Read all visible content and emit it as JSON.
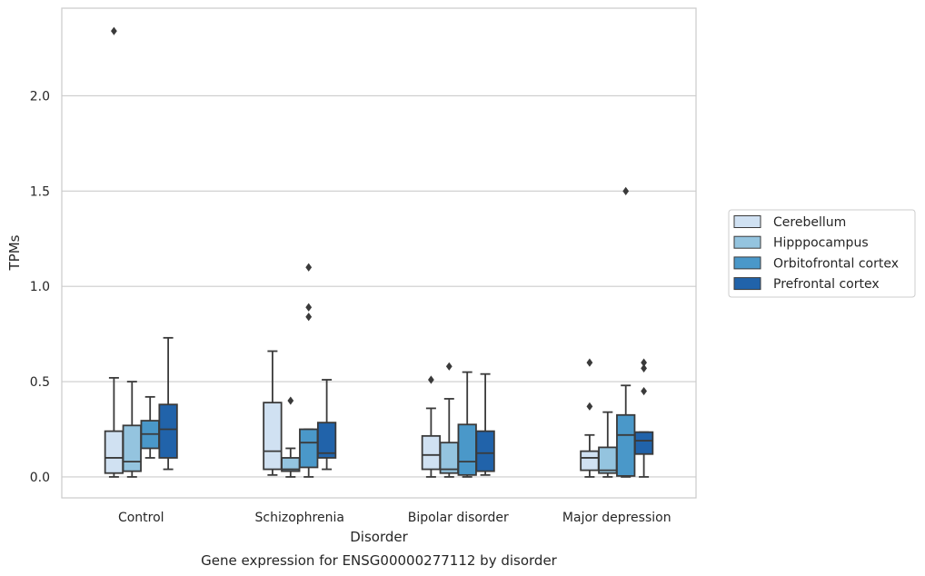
{
  "chart_data": {
    "type": "box",
    "title": "",
    "caption": "Gene expression for ENSG00000277112 by disorder",
    "xlabel": "Disorder",
    "ylabel": "TPMs",
    "categories": [
      "Control",
      "Schizophrenia",
      "Bipolar disorder",
      "Major depression"
    ],
    "ylim": [
      -0.11,
      2.46
    ],
    "yticks": [
      0.0,
      0.5,
      1.0,
      1.5,
      2.0
    ],
    "ytick_labels": [
      "0.0",
      "0.5",
      "1.0",
      "1.5",
      "2.0"
    ],
    "grid": "horizontal",
    "legend_position": "right",
    "series": [
      {
        "name": "Cerebellum",
        "color": "#d0e1f2",
        "boxes": [
          {
            "whisker_low": 0.0,
            "q1": 0.02,
            "median": 0.1,
            "q3": 0.24,
            "whisker_high": 0.52,
            "outliers": [
              2.34
            ]
          },
          {
            "whisker_low": 0.01,
            "q1": 0.04,
            "median": 0.135,
            "q3": 0.39,
            "whisker_high": 0.66,
            "outliers": []
          },
          {
            "whisker_low": 0.0,
            "q1": 0.04,
            "median": 0.115,
            "q3": 0.215,
            "whisker_high": 0.36,
            "outliers": [
              0.51
            ]
          },
          {
            "whisker_low": 0.0,
            "q1": 0.035,
            "median": 0.1,
            "q3": 0.135,
            "whisker_high": 0.22,
            "outliers": [
              0.37,
              0.6
            ]
          }
        ]
      },
      {
        "name": "Hipppocampus",
        "color": "#94c4df",
        "boxes": [
          {
            "whisker_low": 0.0,
            "q1": 0.03,
            "median": 0.08,
            "q3": 0.27,
            "whisker_high": 0.5,
            "outliers": []
          },
          {
            "whisker_low": 0.0,
            "q1": 0.03,
            "median": 0.04,
            "q3": 0.1,
            "whisker_high": 0.15,
            "outliers": [
              0.4
            ]
          },
          {
            "whisker_low": 0.0,
            "q1": 0.02,
            "median": 0.04,
            "q3": 0.18,
            "whisker_high": 0.41,
            "outliers": [
              0.58
            ]
          },
          {
            "whisker_low": 0.0,
            "q1": 0.02,
            "median": 0.035,
            "q3": 0.155,
            "whisker_high": 0.34,
            "outliers": []
          }
        ]
      },
      {
        "name": "Orbitofrontal cortex",
        "color": "#4a98c9",
        "boxes": [
          {
            "whisker_low": 0.1,
            "q1": 0.15,
            "median": 0.225,
            "q3": 0.295,
            "whisker_high": 0.42,
            "outliers": []
          },
          {
            "whisker_low": 0.0,
            "q1": 0.05,
            "median": 0.18,
            "q3": 0.25,
            "whisker_high": 0.25,
            "outliers": [
              0.84,
              0.89,
              1.1
            ]
          },
          {
            "whisker_low": 0.0,
            "q1": 0.01,
            "median": 0.08,
            "q3": 0.275,
            "whisker_high": 0.55,
            "outliers": []
          },
          {
            "whisker_low": 0.0,
            "q1": 0.005,
            "median": 0.22,
            "q3": 0.325,
            "whisker_high": 0.48,
            "outliers": [
              1.5
            ]
          }
        ]
      },
      {
        "name": "Prefrontal cortex",
        "color": "#2163aa",
        "boxes": [
          {
            "whisker_low": 0.04,
            "q1": 0.1,
            "median": 0.25,
            "q3": 0.38,
            "whisker_high": 0.73,
            "outliers": []
          },
          {
            "whisker_low": 0.04,
            "q1": 0.1,
            "median": 0.125,
            "q3": 0.285,
            "whisker_high": 0.51,
            "outliers": []
          },
          {
            "whisker_low": 0.01,
            "q1": 0.03,
            "median": 0.125,
            "q3": 0.24,
            "whisker_high": 0.54,
            "outliers": []
          },
          {
            "whisker_low": 0.0,
            "q1": 0.12,
            "median": 0.19,
            "q3": 0.235,
            "whisker_high": 0.235,
            "outliers": [
              0.45,
              0.57,
              0.6
            ]
          }
        ]
      }
    ]
  }
}
